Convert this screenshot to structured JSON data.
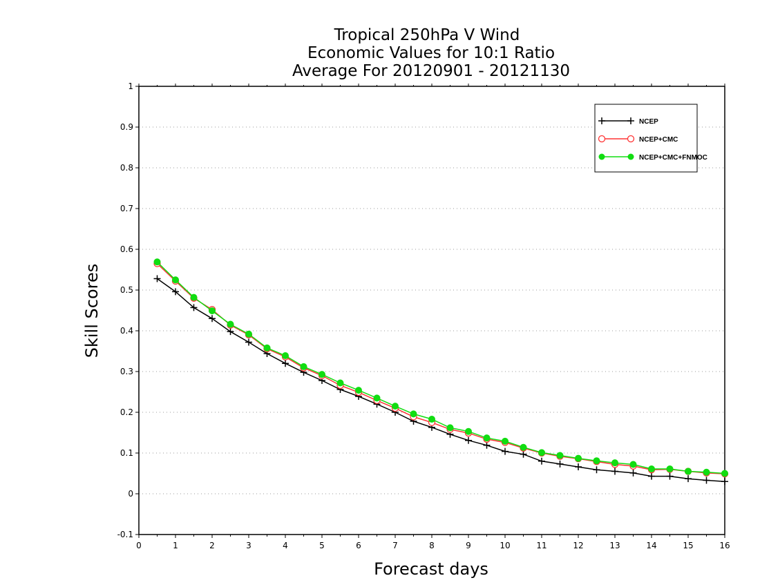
{
  "chart_data": {
    "type": "line",
    "title": [
      "Tropical 250hPa V Wind",
      "Economic Values for 10:1 Ratio",
      "Average For 20120901 - 20121130"
    ],
    "xlabel": "Forecast days",
    "ylabel": "Skill Scores",
    "xlim": [
      0,
      16
    ],
    "ylim": [
      -0.1,
      1
    ],
    "xticks": [
      0,
      1,
      2,
      3,
      4,
      5,
      6,
      7,
      8,
      9,
      10,
      11,
      12,
      13,
      14,
      15,
      16
    ],
    "yticks": [
      -0.1,
      0,
      0.1,
      0.2,
      0.3,
      0.4,
      0.5,
      0.6,
      0.7,
      0.8,
      0.9,
      1
    ],
    "ytick_labels": [
      "-0.1",
      "0",
      "0.1",
      "0.2",
      "0.3",
      "0.4",
      "0.5",
      "0.6",
      "0.7",
      "0.8",
      "0.9",
      "1"
    ],
    "grid": "horizontal dotted",
    "legend_position": "top-right",
    "x": [
      0.5,
      1,
      1.5,
      2,
      2.5,
      3,
      3.5,
      4,
      4.5,
      5,
      5.5,
      6,
      6.5,
      7,
      7.5,
      8,
      8.5,
      9,
      9.5,
      10,
      10.5,
      11,
      11.5,
      12,
      12.5,
      13,
      13.5,
      14,
      14.5,
      15,
      15.5,
      16
    ],
    "series": [
      {
        "name": "NCEP",
        "color": "#000000",
        "marker": "plus",
        "values": [
          0.528,
          0.496,
          0.457,
          0.43,
          0.398,
          0.372,
          0.344,
          0.32,
          0.298,
          0.278,
          0.256,
          0.239,
          0.22,
          0.2,
          0.178,
          0.163,
          0.146,
          0.131,
          0.119,
          0.104,
          0.097,
          0.08,
          0.073,
          0.066,
          0.059,
          0.055,
          0.051,
          0.043,
          0.043,
          0.037,
          0.033,
          0.03
        ]
      },
      {
        "name": "NCEP+CMC",
        "color": "#ff3333",
        "marker": "open-circle",
        "values": [
          0.565,
          0.522,
          0.48,
          0.452,
          0.414,
          0.39,
          0.356,
          0.336,
          0.309,
          0.29,
          0.266,
          0.249,
          0.229,
          0.21,
          0.189,
          0.175,
          0.158,
          0.149,
          0.134,
          0.126,
          0.112,
          0.1,
          0.092,
          0.086,
          0.079,
          0.072,
          0.068,
          0.059,
          0.06,
          0.055,
          0.051,
          0.049
        ]
      },
      {
        "name": "NCEP+CMC+FNMOC",
        "color": "#11dd11",
        "marker": "filled-circle",
        "values": [
          0.569,
          0.525,
          0.482,
          0.449,
          0.416,
          0.392,
          0.358,
          0.339,
          0.312,
          0.293,
          0.272,
          0.254,
          0.235,
          0.215,
          0.196,
          0.183,
          0.162,
          0.153,
          0.137,
          0.129,
          0.114,
          0.101,
          0.094,
          0.087,
          0.081,
          0.076,
          0.072,
          0.061,
          0.061,
          0.055,
          0.053,
          0.05
        ]
      }
    ]
  }
}
